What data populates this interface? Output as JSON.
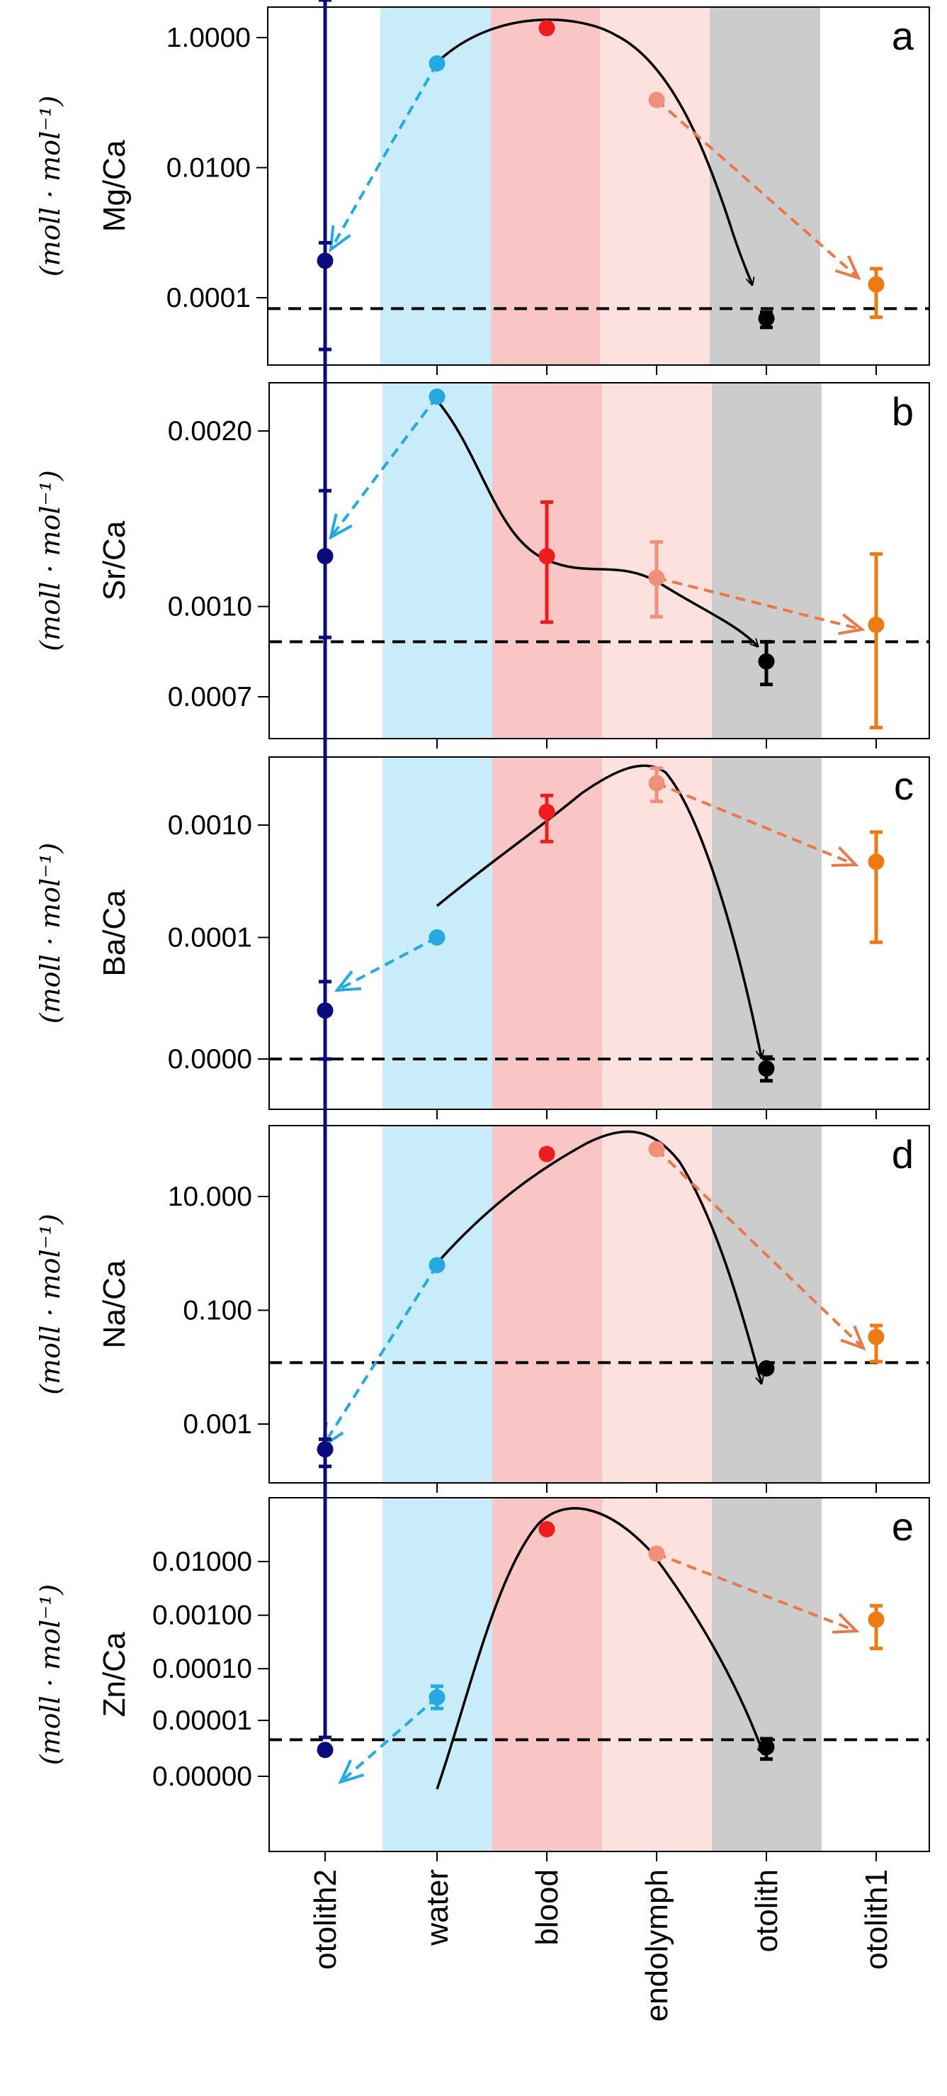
{
  "colors": {
    "otolith2": "#0b0b7d",
    "water": "#24a9e1",
    "blood": "#ee1c1c",
    "endolymph": "#f0907a",
    "otolith": "#000000",
    "otolith1": "#ee7a12",
    "band_water": "#c8ecf9",
    "band_blood": "#f9c5c5",
    "band_endolymph": "#fde1df",
    "band_otolith": "#cccccc",
    "arrow_water": "#24a9e1",
    "arrow_endolymph": "#e9784a"
  },
  "chart_data": [
    {
      "panel": "a",
      "type": "scatter",
      "ylabel": "Mg/Ca",
      "yunit": "(moll · mol⁻¹)",
      "scale": "log",
      "ylim_log10": [
        -4.55,
        0.25
      ],
      "ticks": [
        {
          "label": "1.0000",
          "value": 1.0
        },
        {
          "label": "0.0100",
          "value": 0.01
        },
        {
          "label": "0.0001",
          "value": 0.0001
        }
      ],
      "categories": [
        "otolith2",
        "water",
        "blood",
        "endolymph",
        "otolith",
        "otolith1"
      ],
      "points": [
        {
          "category": "otolith2",
          "value": 0.00037,
          "lo": 1.6e-05,
          "hi": 0.0007
        },
        {
          "category": "water",
          "value": 0.4
        },
        {
          "category": "blood",
          "value": 1.4,
          "lo": 1.25,
          "hi": 1.55
        },
        {
          "category": "endolymph",
          "value": 0.11
        },
        {
          "category": "otolith",
          "value": 4.8e-05,
          "lo": 3.5e-05,
          "hi": 6e-05
        },
        {
          "category": "otolith1",
          "value": 0.00016,
          "lo": 5e-05,
          "hi": 0.00028
        }
      ],
      "reference_line": 6.8e-05
    },
    {
      "panel": "b",
      "type": "scatter",
      "ylabel": "Sr/Ca",
      "yunit": "(moll · mol⁻¹)",
      "scale": "log",
      "ylim": [
        0.00059,
        0.00253
      ],
      "ticks": [
        {
          "label": "0.0020",
          "value": 0.002
        },
        {
          "label": "0.0010",
          "value": 0.001
        },
        {
          "label": "0.0007",
          "value": 0.0007
        }
      ],
      "categories": [
        "otolith2",
        "water",
        "blood",
        "endolymph",
        "otolith",
        "otolith1"
      ],
      "points": [
        {
          "category": "otolith2",
          "value": 0.00122,
          "lo": 0.000885,
          "hi": 0.00158
        },
        {
          "category": "water",
          "value": 0.00229
        },
        {
          "category": "blood",
          "value": 0.00122,
          "lo": 0.00094,
          "hi": 0.00151
        },
        {
          "category": "endolymph",
          "value": 0.00112,
          "lo": 0.00096,
          "hi": 0.00129
        },
        {
          "category": "otolith",
          "value": 0.000805,
          "lo": 0.000735,
          "hi": 0.00087
        },
        {
          "category": "otolith1",
          "value": 0.00093,
          "lo": 0.00062,
          "hi": 0.00123
        }
      ],
      "reference_line": 0.00087
    },
    {
      "panel": "c",
      "type": "scatter",
      "ylabel": "Ba/Ca",
      "yunit": "(moll · mol⁻¹)",
      "scale": "log1p",
      "ticks": [
        {
          "label": "0.0010",
          "value": 0.001
        },
        {
          "label": "0.0001",
          "value": 0.0001
        },
        {
          "label": "0.0000",
          "value": 0.0
        }
      ],
      "categories": [
        "otolith2",
        "water",
        "blood",
        "endolymph",
        "otolith",
        "otolith1"
      ],
      "points": [
        {
          "category": "otolith2",
          "value": 1.6e-05,
          "lo": 0.0,
          "hi": 3.6e-05
        },
        {
          "category": "water",
          "value": 0.0001
        },
        {
          "category": "blood",
          "value": 0.0013,
          "lo": 0.00072,
          "hi": 0.0018
        },
        {
          "category": "endolymph",
          "value": 0.0023,
          "lo": 0.0016,
          "hi": 0.0031
        },
        {
          "category": "otolith",
          "value": -1.7e-06,
          "lo": -3.5e-06,
          "hi": 4e-07
        },
        {
          "category": "otolith1",
          "value": 0.00048,
          "lo": 9e-05,
          "hi": 0.00087
        }
      ],
      "reference_line": 0.0
    },
    {
      "panel": "d",
      "type": "scatter",
      "ylabel": "Na/Ca",
      "yunit": "(moll · mol⁻¹)",
      "scale": "log",
      "ylim_log10": [
        -3.55,
        2.05
      ],
      "ticks": [
        {
          "label": "10.000",
          "value": 10
        },
        {
          "label": "0.100",
          "value": 0.1
        },
        {
          "label": "0.001",
          "value": 0.001
        }
      ],
      "categories": [
        "otolith2",
        "water",
        "blood",
        "endolymph",
        "otolith",
        "otolith1"
      ],
      "points": [
        {
          "category": "otolith2",
          "value": 0.00036,
          "lo": 0.00018,
          "hi": 0.00054
        },
        {
          "category": "water",
          "value": 0.62
        },
        {
          "category": "blood",
          "value": 56
        },
        {
          "category": "endolymph",
          "value": 68
        },
        {
          "category": "otolith",
          "value": 0.0095
        },
        {
          "category": "otolith1",
          "value": 0.034,
          "lo": 0.0125,
          "hi": 0.054
        }
      ],
      "reference_line": 0.012
    },
    {
      "panel": "e",
      "type": "scatter",
      "ylabel": "Zn/Ca",
      "yunit": "(moll · mol⁻¹)",
      "scale": "log1p",
      "ticks": [
        {
          "label": "0.01000",
          "value": 0.01
        },
        {
          "label": "0.00100",
          "value": 0.001
        },
        {
          "label": "0.00010",
          "value": 0.0001
        },
        {
          "label": "0.00001",
          "value": 1e-05
        },
        {
          "label": "0.00000",
          "value": 0.0
        }
      ],
      "categories": [
        "otolith2",
        "water",
        "blood",
        "endolymph",
        "otolith",
        "otolith1"
      ],
      "points": [
        {
          "category": "otolith2",
          "value": 2.1e-06,
          "lo": -3e-06,
          "hi": 4.3e-06
        },
        {
          "category": "water",
          "value": 2.85e-05,
          "lo": 1.74e-05,
          "hi": 4.66e-05
        },
        {
          "category": "blood",
          "value": 0.04
        },
        {
          "category": "endolymph",
          "value": 0.014
        },
        {
          "category": "otolith",
          "value": 2.5e-06,
          "lo": 1.1e-06,
          "hi": 4e-06
        },
        {
          "category": "otolith1",
          "value": 0.00083,
          "lo": 0.00024,
          "hi": 0.0015
        }
      ],
      "reference_line": 3.8e-06
    }
  ],
  "categories_axis": [
    "otolith2",
    "water",
    "blood",
    "endolymph",
    "otolith",
    "otolith1"
  ]
}
